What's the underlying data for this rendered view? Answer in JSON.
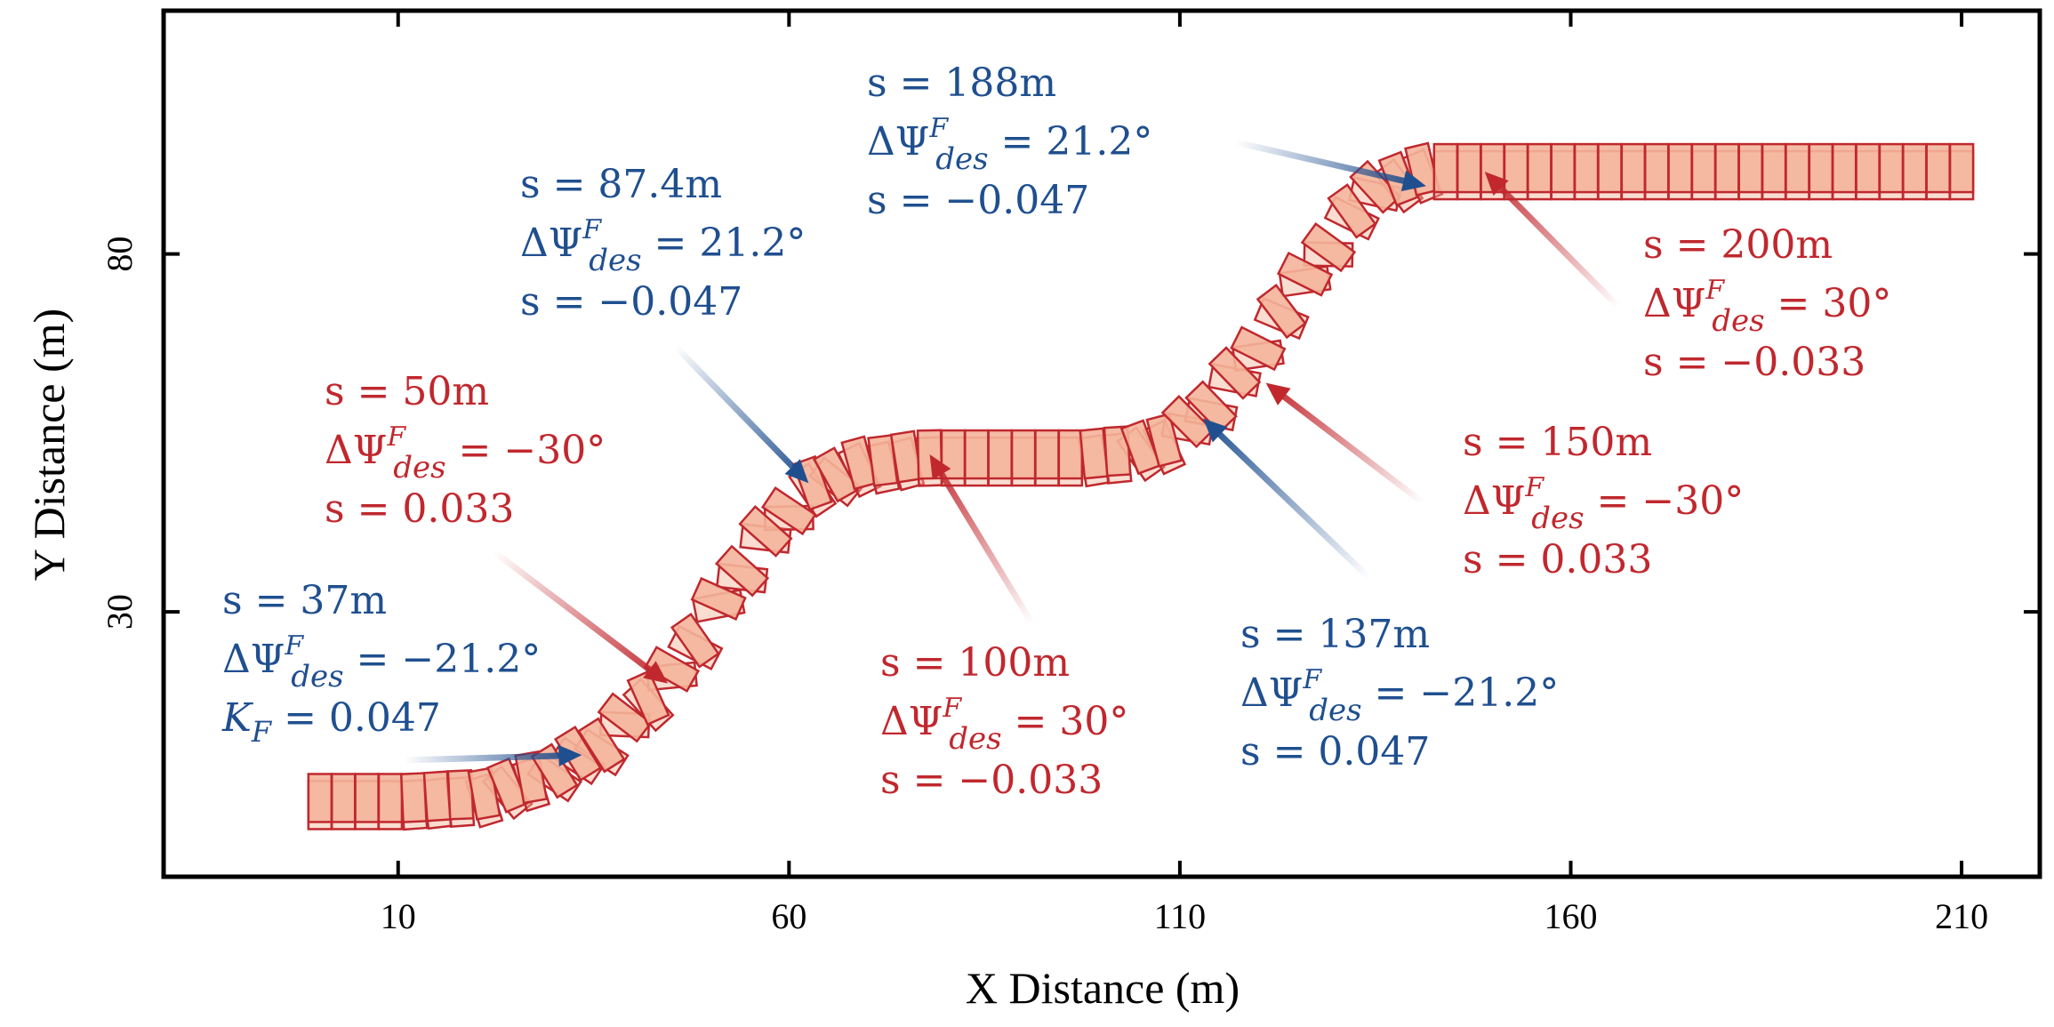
{
  "chart_data": {
    "type": "scatter",
    "title": "",
    "xlabel": "X Distance (m)",
    "ylabel": "Y Distance (m)",
    "xlim": [
      -20,
      220
    ],
    "ylim": [
      -7,
      114
    ],
    "xticks": [
      10,
      60,
      110,
      160,
      210
    ],
    "yticks": [
      30,
      80
    ],
    "grid": false,
    "colors": {
      "red": "#c0282e",
      "blue": "#1f4f8f",
      "fill": "#f4b49a",
      "edge": "#c0282e"
    },
    "path_x": [
      0,
      10,
      20,
      28,
      35,
      42,
      48,
      53,
      58,
      63,
      70,
      78,
      88,
      97,
      103,
      108,
      113,
      118,
      123,
      128,
      132,
      136,
      142,
      150,
      160,
      175,
      190,
      200,
      210
    ],
    "path_y": [
      4,
      4,
      4.5,
      7,
      11,
      18,
      26,
      35,
      42,
      48,
      51,
      52,
      52,
      52,
      52.5,
      54,
      58,
      64,
      72,
      80,
      86,
      90,
      92,
      92,
      92,
      92,
      92,
      92,
      92
    ],
    "annotations": [
      {
        "color": "blue",
        "lines": [
          "s = 37m",
          "ΔΨdes = −21.2°",
          "KF = 0.047"
        ],
        "point": [
          33.5,
          10
        ]
      },
      {
        "color": "red",
        "lines": [
          "s = 50m",
          "ΔΨdes = −30°",
          "s = 0.033"
        ],
        "point": [
          44.5,
          20
        ]
      },
      {
        "color": "blue",
        "lines": [
          "s = 87.4m",
          "ΔΨdes = 21.2°",
          "s = −0.047"
        ],
        "point": [
          62.5,
          48
        ]
      },
      {
        "color": "red",
        "lines": [
          "s = 100m",
          "ΔΨdes = 30°",
          "s = −0.033"
        ],
        "point": [
          78,
          52
        ]
      },
      {
        "color": "blue",
        "lines": [
          "s = 137m",
          "ΔΨdes = −21.2°",
          "s = 0.047"
        ],
        "point": [
          113,
          57
        ]
      },
      {
        "color": "red",
        "lines": [
          "s = 150m",
          "ΔΨdes = −30°",
          "s = 0.033"
        ],
        "point": [
          121,
          62
        ]
      },
      {
        "color": "blue",
        "lines": [
          "s = 188m",
          "ΔΨdes = 21.2°",
          "s = −0.047"
        ],
        "point": [
          141.5,
          89.5
        ]
      },
      {
        "color": "red",
        "lines": [
          "s = 200m",
          "ΔΨdes = 30°",
          "s = −0.033"
        ],
        "point": [
          149,
          91.5
        ]
      }
    ]
  }
}
